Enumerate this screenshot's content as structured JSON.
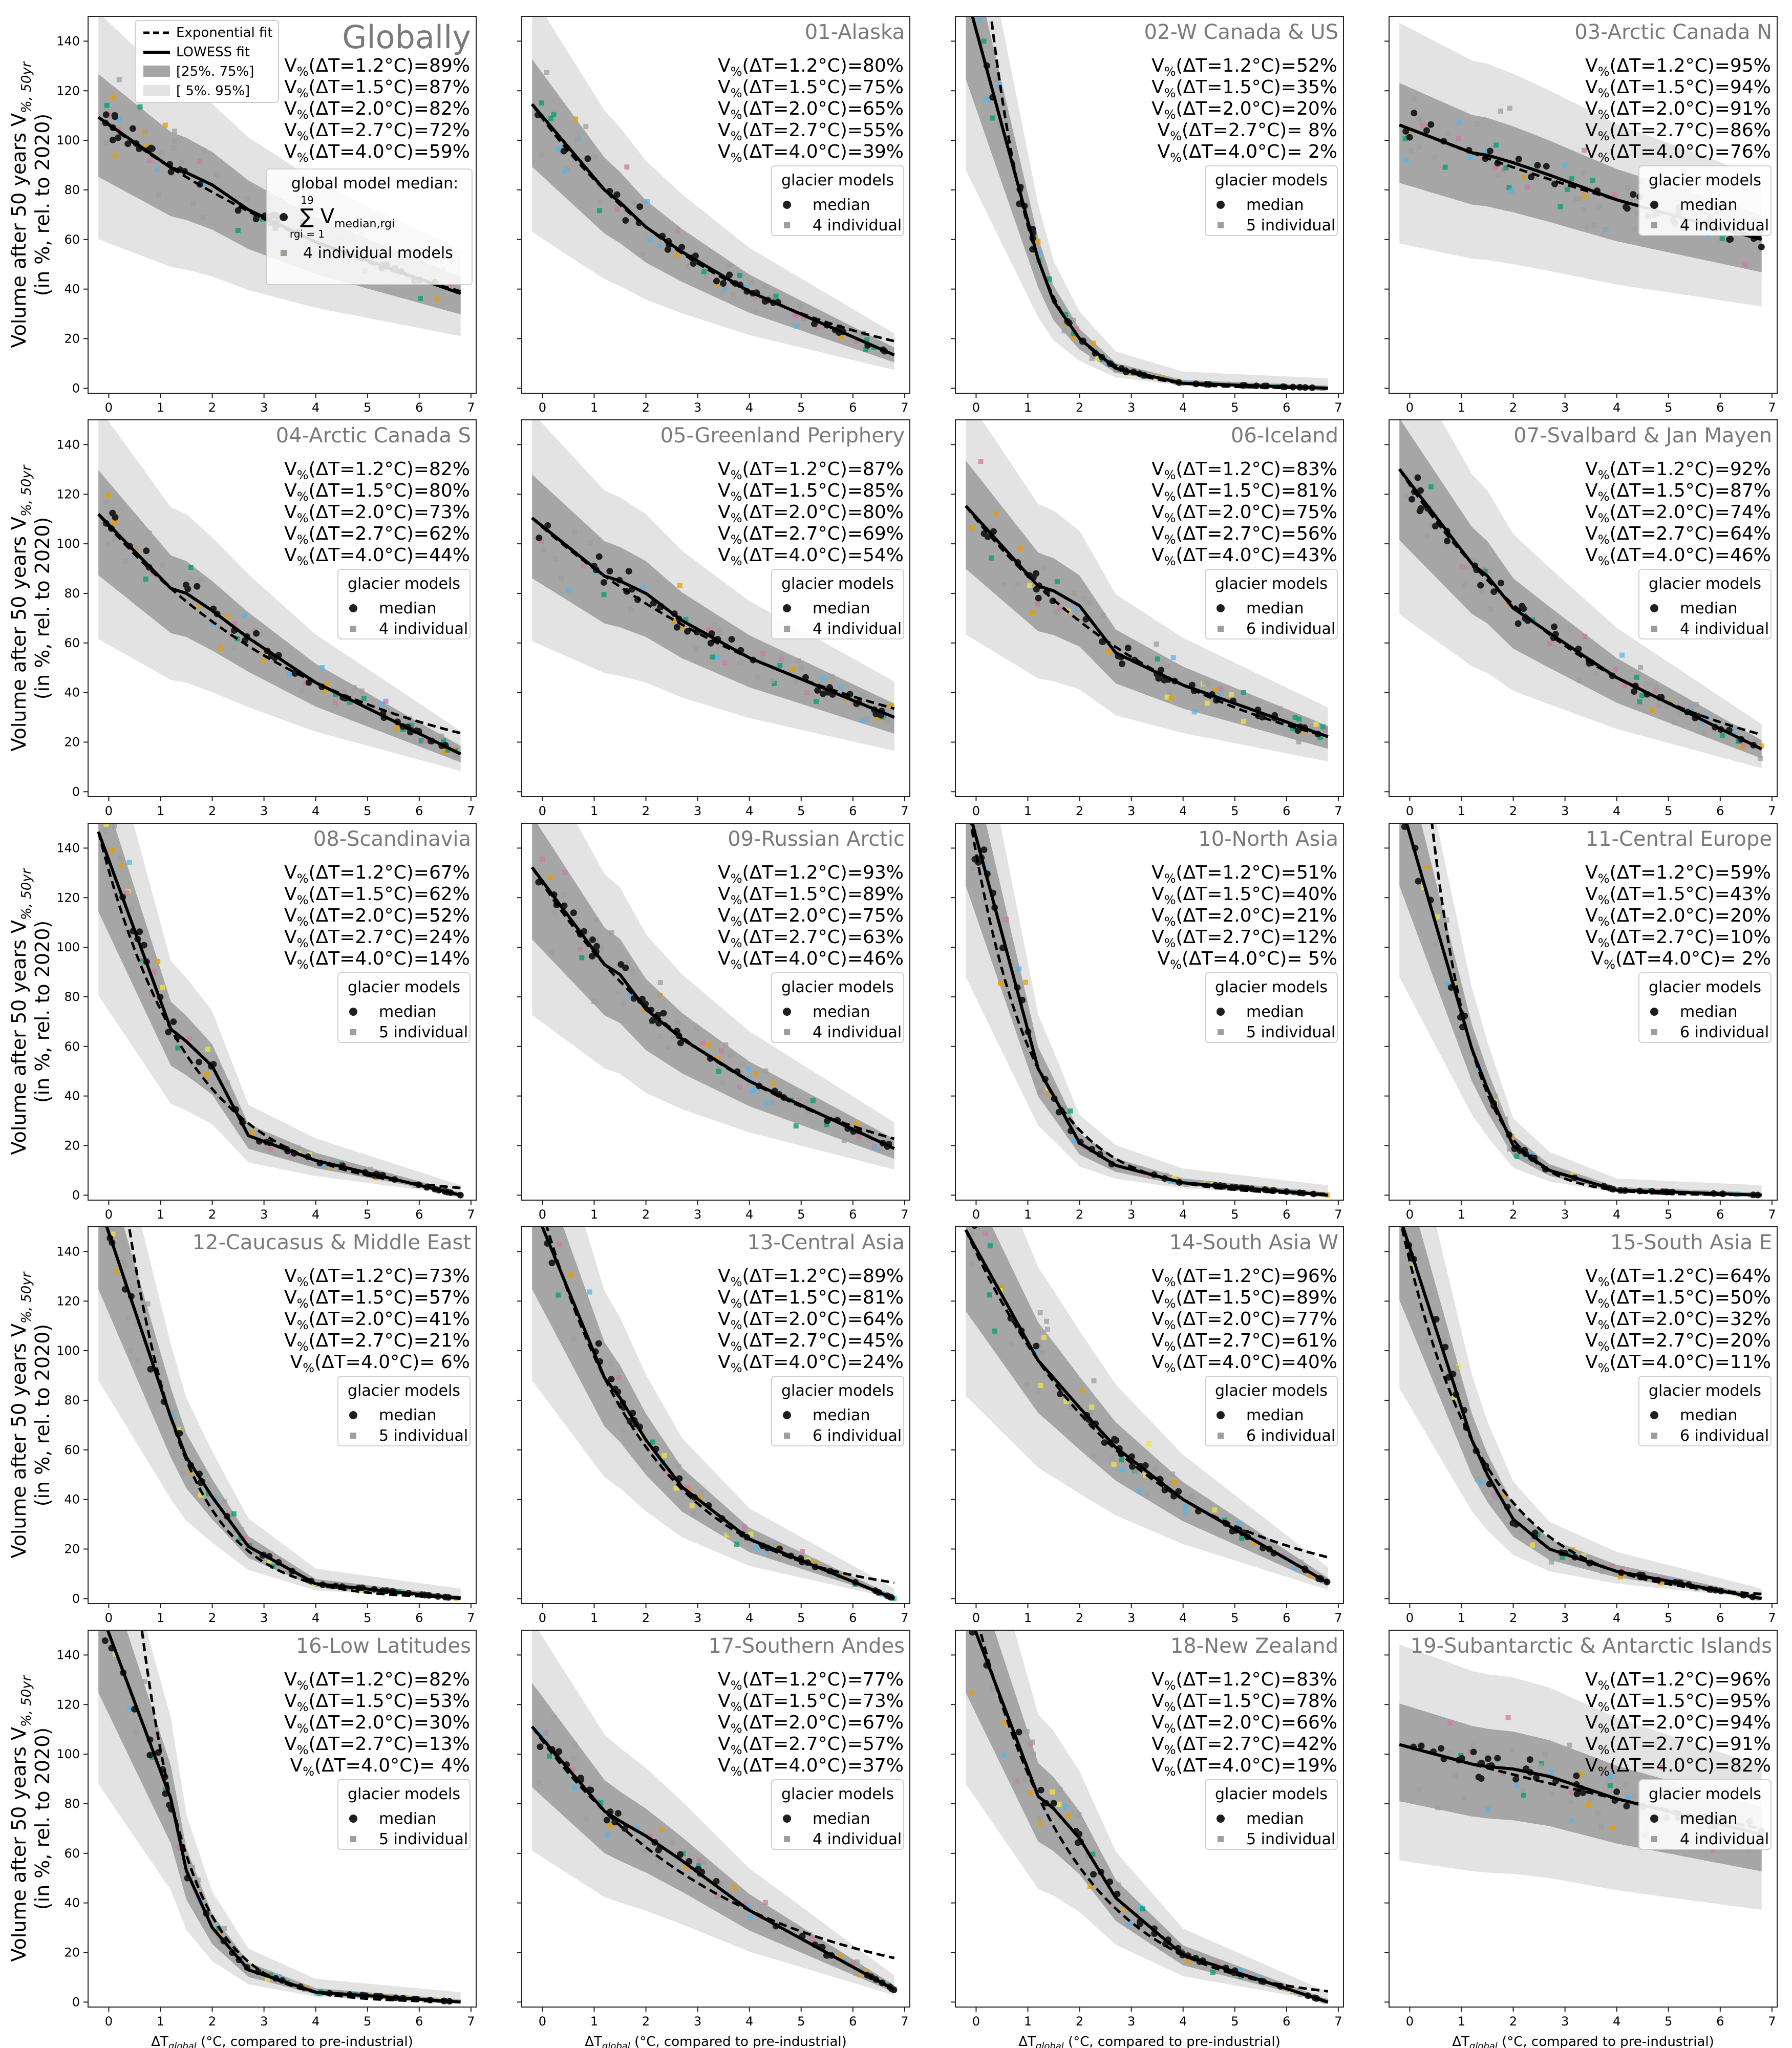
{
  "figure": {
    "ylabel_line1": "Volume after 50 years V",
    "ylabel_sub": "%, 50yr",
    "ylabel_line2": "(in %, rel. to 2020)",
    "xlabel_pre": "ΔT",
    "xlabel_sub": "global",
    "xlabel_post": " (°C, compared to pre-industrial)",
    "yticks": [
      0,
      20,
      40,
      60,
      80,
      100,
      120,
      140
    ],
    "xticks": [
      0,
      1,
      2,
      3,
      4,
      5,
      6,
      7
    ],
    "colors": {
      "median_dot": "#1f1f1f",
      "individual": "#9e9e9e",
      "band_25_75": "#a6a6a6",
      "band_5_95": "#e3e3e3",
      "model_colors": [
        "#56b4e9",
        "#e69f00",
        "#cc79a7",
        "#009e73",
        "#f0e442"
      ]
    },
    "global_legend": {
      "exp_fit": "Exponential fit",
      "lowess_fit": "LOWESS fit",
      "band_inner": "[25%. 75%]",
      "band_outer": "[ 5%. 95%]",
      "median_title": "global model median:",
      "median_formula": "∑ V",
      "median_formula_sub": "median,rgi",
      "median_formula_upper": "19",
      "median_formula_lower": "rgi = 1",
      "individual_label": "4 individual models"
    },
    "legend_title": "glacier models",
    "legend_median": "median"
  },
  "chart_data": [
    {
      "type": "scatter",
      "title": "Globally",
      "v": [
        89,
        87,
        82,
        72,
        59
      ],
      "n_models": "4 individual",
      "xlim": [
        -0.4,
        7.1
      ],
      "ylim": [
        -2,
        150
      ]
    },
    {
      "type": "scatter",
      "title": "01-Alaska",
      "v": [
        80,
        75,
        65,
        55,
        39
      ],
      "n_models": "4 individual",
      "xlim": [
        -0.4,
        7.1
      ],
      "ylim": [
        -2,
        150
      ]
    },
    {
      "type": "scatter",
      "title": "02-W Canada & US",
      "v": [
        52,
        35,
        20,
        8,
        2
      ],
      "n_models": "5 individual",
      "xlim": [
        -0.4,
        7.1
      ],
      "ylim": [
        -2,
        150
      ]
    },
    {
      "type": "scatter",
      "title": "03-Arctic Canada N",
      "v": [
        95,
        94,
        91,
        86,
        76
      ],
      "n_models": "4 individual",
      "xlim": [
        -0.4,
        7.1
      ],
      "ylim": [
        -2,
        150
      ]
    },
    {
      "type": "scatter",
      "title": "04-Arctic Canada S",
      "v": [
        82,
        80,
        73,
        62,
        44
      ],
      "n_models": "4 individual",
      "xlim": [
        -0.4,
        7.1
      ],
      "ylim": [
        -2,
        150
      ]
    },
    {
      "type": "scatter",
      "title": "05-Greenland Periphery",
      "v": [
        87,
        85,
        80,
        69,
        54
      ],
      "n_models": "4 individual",
      "xlim": [
        -0.4,
        7.1
      ],
      "ylim": [
        -2,
        150
      ]
    },
    {
      "type": "scatter",
      "title": "06-Iceland",
      "v": [
        83,
        81,
        75,
        56,
        43
      ],
      "n_models": "6 individual",
      "xlim": [
        -0.4,
        7.1
      ],
      "ylim": [
        -2,
        150
      ]
    },
    {
      "type": "scatter",
      "title": "07-Svalbard & Jan Mayen",
      "v": [
        92,
        87,
        74,
        64,
        46
      ],
      "n_models": "4 individual",
      "xlim": [
        -0.4,
        7.1
      ],
      "ylim": [
        -2,
        150
      ]
    },
    {
      "type": "scatter",
      "title": "08-Scandinavia",
      "v": [
        67,
        62,
        52,
        24,
        14
      ],
      "n_models": "5 individual",
      "xlim": [
        -0.4,
        7.1
      ],
      "ylim": [
        -2,
        150
      ]
    },
    {
      "type": "scatter",
      "title": "09-Russian Arctic",
      "v": [
        93,
        89,
        75,
        63,
        46
      ],
      "n_models": "4 individual",
      "xlim": [
        -0.4,
        7.1
      ],
      "ylim": [
        -2,
        150
      ]
    },
    {
      "type": "scatter",
      "title": "10-North Asia",
      "v": [
        51,
        40,
        21,
        12,
        5
      ],
      "n_models": "5 individual",
      "xlim": [
        -0.4,
        7.1
      ],
      "ylim": [
        -2,
        150
      ]
    },
    {
      "type": "scatter",
      "title": "11-Central Europe",
      "v": [
        59,
        43,
        20,
        10,
        2
      ],
      "n_models": "6 individual",
      "xlim": [
        -0.4,
        7.1
      ],
      "ylim": [
        -2,
        150
      ]
    },
    {
      "type": "scatter",
      "title": "12-Caucasus & Middle East",
      "v": [
        73,
        57,
        41,
        21,
        6
      ],
      "n_models": "5 individual",
      "xlim": [
        -0.4,
        7.1
      ],
      "ylim": [
        -2,
        150
      ]
    },
    {
      "type": "scatter",
      "title": "13-Central Asia",
      "v": [
        89,
        81,
        64,
        45,
        24
      ],
      "n_models": "6 individual",
      "xlim": [
        -0.4,
        7.1
      ],
      "ylim": [
        -2,
        150
      ]
    },
    {
      "type": "scatter",
      "title": "14-South Asia W",
      "v": [
        96,
        89,
        77,
        61,
        40
      ],
      "n_models": "6 individual",
      "xlim": [
        -0.4,
        7.1
      ],
      "ylim": [
        -2,
        150
      ]
    },
    {
      "type": "scatter",
      "title": "15-South Asia E",
      "v": [
        64,
        50,
        32,
        20,
        11
      ],
      "n_models": "6 individual",
      "xlim": [
        -0.4,
        7.1
      ],
      "ylim": [
        -2,
        150
      ]
    },
    {
      "type": "scatter",
      "title": "16-Low Latitudes",
      "v": [
        82,
        53,
        30,
        13,
        4
      ],
      "n_models": "5 individual",
      "xlim": [
        -0.4,
        7.1
      ],
      "ylim": [
        -2,
        150
      ]
    },
    {
      "type": "scatter",
      "title": "17-Southern Andes",
      "v": [
        77,
        73,
        67,
        57,
        37
      ],
      "n_models": "4 individual",
      "xlim": [
        -0.4,
        7.1
      ],
      "ylim": [
        -2,
        150
      ]
    },
    {
      "type": "scatter",
      "title": "18-New Zealand",
      "v": [
        83,
        78,
        66,
        42,
        19
      ],
      "n_models": "5 individual",
      "xlim": [
        -0.4,
        7.1
      ],
      "ylim": [
        -2,
        150
      ]
    },
    {
      "type": "scatter",
      "title": "19-Subantarctic & Antarctic Islands",
      "v": [
        96,
        95,
        94,
        91,
        82
      ],
      "n_models": "4 individual",
      "xlim": [
        -0.4,
        7.1
      ],
      "ylim": [
        -2,
        150
      ]
    }
  ],
  "stat_labels": [
    "1.2",
    "1.5",
    "2.0",
    "2.7",
    "4.0"
  ]
}
